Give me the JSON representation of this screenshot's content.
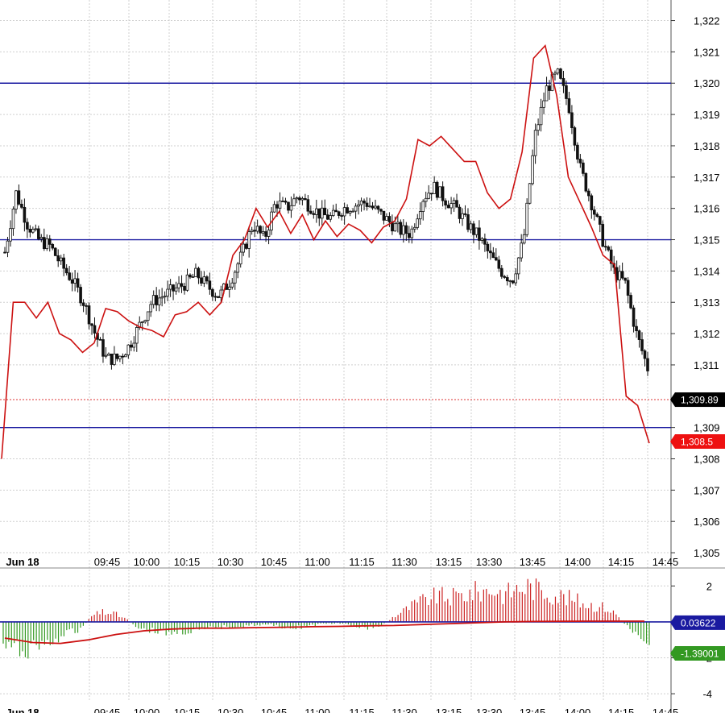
{
  "chart_data": [
    {
      "type": "candlestick",
      "panel": "price",
      "x_labels": [
        "Jun 18",
        "09:45",
        "10:00",
        "10:15",
        "10:30",
        "10:45",
        "11:00",
        "11:15",
        "11:30",
        "13:15",
        "13:30",
        "13:45",
        "14:00",
        "14:15",
        "14:45"
      ],
      "y_ticks": [
        "1,322",
        "1,321",
        "1,320",
        "1,319",
        "1,318",
        "1,317",
        "1,316",
        "1,315",
        "1,314",
        "1,313",
        "1,312",
        "1,311",
        "1,309",
        "1,308",
        "1,307",
        "1,306",
        "1,305"
      ],
      "ylim": [
        1304.95,
        1322.4
      ],
      "grid": true,
      "horizontal_lines": [
        1320,
        1315,
        1309
      ],
      "horizontal_line_color": "#1a1aa0",
      "last_price_dotted": 1309.89,
      "candle_close_path": [
        1314.6,
        1316.5,
        1315.5,
        1315.0,
        1314.8,
        1314.2,
        1313.7,
        1313.0,
        1312.0,
        1311.2,
        1311.2,
        1311.6,
        1312.3,
        1313.0,
        1313.2,
        1313.4,
        1313.6,
        1313.9,
        1313.5,
        1313.2,
        1313.7,
        1314.5,
        1315.5,
        1315.0,
        1316.2,
        1316.0,
        1316.4,
        1316.1,
        1315.8,
        1315.7,
        1316.0,
        1316.1,
        1316.2,
        1315.9,
        1315.6,
        1315.3,
        1315.2,
        1316.3,
        1316.7,
        1316.3,
        1316.0,
        1315.5,
        1315.1,
        1314.5,
        1314.0,
        1313.7,
        1315.0,
        1318.3,
        1319.8,
        1320.3,
        1319.3,
        1317.3,
        1316.2,
        1315.0,
        1314.0,
        1313.6,
        1312.0,
        1310.9
      ],
      "series": [
        {
          "name": "",
          "type": "line",
          "color": "#cc1111",
          "values": [
            1308.0,
            1313.0,
            1313.0,
            1312.5,
            1313.0,
            1312.0,
            1311.8,
            1311.4,
            1311.7,
            1312.8,
            1312.7,
            1312.4,
            1312.2,
            1312.1,
            1311.9,
            1312.6,
            1312.7,
            1313.0,
            1312.6,
            1313.0,
            1314.5,
            1315.0,
            1316.0,
            1315.4,
            1315.9,
            1315.2,
            1315.8,
            1315.0,
            1315.6,
            1315.1,
            1315.5,
            1315.3,
            1314.9,
            1315.4,
            1315.6,
            1316.3,
            1318.2,
            1318.0,
            1318.3,
            1317.9,
            1317.5,
            1317.5,
            1316.5,
            1316.0,
            1316.3,
            1317.8,
            1320.8,
            1321.2,
            1319.6,
            1317.0,
            1316.2,
            1315.4,
            1314.5,
            1314.2,
            1310.0,
            1309.7,
            1308.5
          ]
        }
      ]
    },
    {
      "type": "bar",
      "panel": "oscillator",
      "y_ticks": [
        "2",
        "-2",
        "-4"
      ],
      "ylim": [
        -4.4,
        3.0
      ],
      "grid": true,
      "pos_color": "#cc2222",
      "neg_color": "#339922",
      "values": [
        -1.4,
        -1.8,
        -1.7,
        -1.5,
        -1.3,
        -1.0,
        -0.7,
        -0.4,
        0.4,
        0.6,
        0.5,
        0.2,
        -0.3,
        -0.5,
        -0.6,
        -0.7,
        -0.6,
        -0.6,
        -0.5,
        -0.4,
        -0.3,
        -0.3,
        -0.2,
        -0.2,
        -0.2,
        -0.3,
        -0.4,
        -0.3,
        -0.2,
        -0.1,
        -0.1,
        -0.2,
        -0.3,
        -0.4,
        -0.2,
        0.3,
        0.7,
        1.1,
        1.4,
        1.6,
        1.5,
        1.6,
        1.8,
        1.9,
        2.0,
        1.7,
        2.0,
        2.2,
        2.0,
        1.8,
        1.6,
        1.4,
        1.2,
        1.0,
        0.9,
        0.5,
        -0.3,
        -0.8,
        -1.2
      ],
      "signal_line_color": "#cc1111",
      "signal_line": [
        -0.9,
        -1.15,
        -1.2,
        -1.0,
        -0.7,
        -0.5,
        -0.4,
        -0.35,
        -0.35,
        -0.32,
        -0.3,
        -0.27,
        -0.25,
        -0.22,
        -0.2,
        -0.15,
        -0.1,
        -0.05,
        0.0,
        0.02,
        0.03,
        0.04,
        0.04,
        0.04
      ],
      "zero_line_color": "#1a1aa0"
    }
  ],
  "badges": {
    "last_price": {
      "label": "1,309.89",
      "color": "#000000"
    },
    "current_price": {
      "label": "1,308.5",
      "color": "#ee1111"
    },
    "osc_value": {
      "label": "0.03622",
      "color": "#1a1aa0"
    },
    "osc_signal": {
      "label": "-1.39001",
      "color": "#339922"
    }
  }
}
